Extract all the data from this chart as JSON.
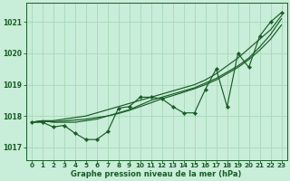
{
  "title": "Graphe pression niveau de la mer (hPa)",
  "background_color": "#c8edd8",
  "grid_color": "#a8d8b8",
  "line_color": "#1a5c28",
  "x_min": -0.5,
  "x_max": 23.5,
  "y_min": 1016.6,
  "y_max": 1021.6,
  "yticks": [
    1017,
    1018,
    1019,
    1020,
    1021
  ],
  "xticks": [
    0,
    1,
    2,
    3,
    4,
    5,
    6,
    7,
    8,
    9,
    10,
    11,
    12,
    13,
    14,
    15,
    16,
    17,
    18,
    19,
    20,
    21,
    22,
    23
  ],
  "series_main": [
    1017.8,
    1017.8,
    1017.65,
    1017.7,
    1017.45,
    1017.25,
    1017.25,
    1017.5,
    1018.25,
    1018.3,
    1018.6,
    1018.6,
    1018.55,
    1018.3,
    1018.1,
    1018.1,
    1018.85,
    1019.5,
    1018.3,
    1020.0,
    1019.55,
    1020.55,
    1021.0,
    1021.3
  ],
  "series_smooth1": [
    1017.8,
    1017.85,
    1017.8,
    1017.8,
    1017.8,
    1017.85,
    1017.9,
    1018.0,
    1018.1,
    1018.2,
    1018.35,
    1018.5,
    1018.6,
    1018.7,
    1018.8,
    1018.9,
    1019.05,
    1019.2,
    1019.4,
    1019.6,
    1019.85,
    1020.2,
    1020.6,
    1021.1
  ],
  "series_smooth2": [
    1017.8,
    1017.85,
    1017.85,
    1017.9,
    1017.95,
    1018.0,
    1018.1,
    1018.2,
    1018.3,
    1018.4,
    1018.5,
    1018.6,
    1018.7,
    1018.8,
    1018.9,
    1019.0,
    1019.15,
    1019.35,
    1019.6,
    1019.85,
    1020.15,
    1020.45,
    1020.75,
    1021.2
  ],
  "series_smooth3": [
    1017.8,
    1017.82,
    1017.82,
    1017.84,
    1017.87,
    1017.9,
    1017.95,
    1018.0,
    1018.08,
    1018.18,
    1018.3,
    1018.42,
    1018.55,
    1018.65,
    1018.76,
    1018.87,
    1019.0,
    1019.15,
    1019.35,
    1019.55,
    1019.8,
    1020.1,
    1020.45,
    1020.9
  ],
  "marker": "D",
  "markersize": 2.2,
  "linewidth": 0.85,
  "title_fontsize": 6.0,
  "tick_fontsize": 5.2
}
